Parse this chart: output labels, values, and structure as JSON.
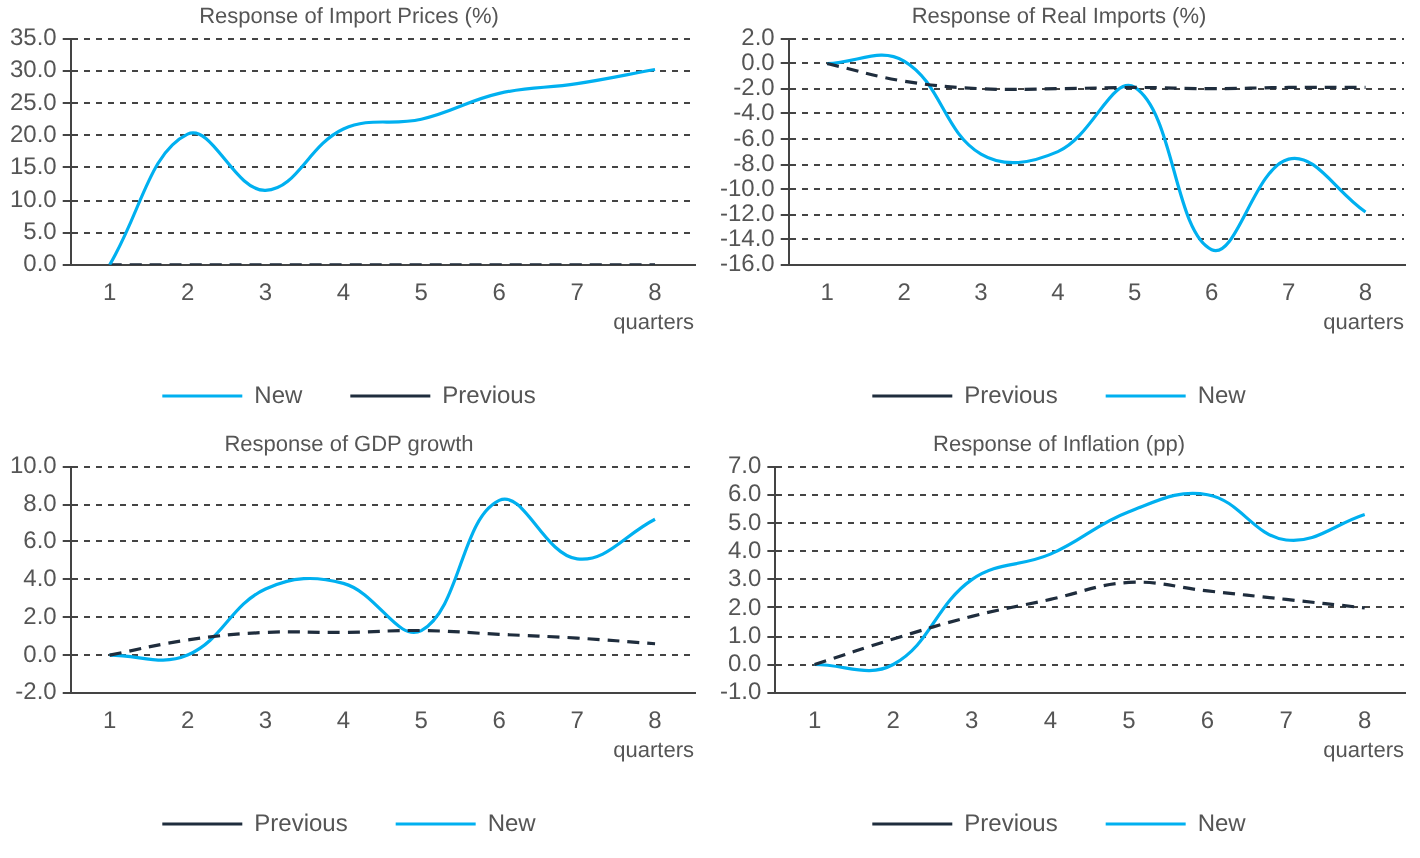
{
  "chart_data": [
    {
      "type": "line",
      "title": "Response of Import Prices (%)",
      "xlabel": "quarters",
      "categories": [
        "1",
        "2",
        "3",
        "4",
        "5",
        "6",
        "7",
        "8"
      ],
      "ylim": [
        0,
        35
      ],
      "yticks": [
        {
          "value": 0,
          "label": "0.0"
        },
        {
          "value": 5,
          "label": "5.0"
        },
        {
          "value": 10,
          "label": "10.0"
        },
        {
          "value": 15,
          "label": "15.0"
        },
        {
          "value": 20,
          "label": "20.0"
        },
        {
          "value": 25,
          "label": "25.0"
        },
        {
          "value": 30,
          "label": "30.0"
        },
        {
          "value": 35,
          "label": "35.0"
        }
      ],
      "grid": "y",
      "legend": "bottom",
      "marker": "none",
      "series": [
        {
          "name": "New",
          "color": "#00b0f0",
          "line_style": "solid",
          "values": [
            0,
            20.2,
            11.5,
            21,
            22.5,
            26.5,
            28,
            30.2
          ]
        },
        {
          "name": "Previous",
          "color": "#1f2d3d",
          "line_style": "dashed",
          "values": [
            0,
            0,
            0,
            0,
            0,
            0,
            0,
            0
          ]
        }
      ]
    },
    {
      "type": "line",
      "title": "Response of Real Imports (%)",
      "xlabel": "quarters",
      "categories": [
        "1",
        "2",
        "3",
        "4",
        "5",
        "6",
        "7",
        "8"
      ],
      "ylim": [
        -16,
        2
      ],
      "yticks": [
        {
          "value": -16,
          "label": "-16.0"
        },
        {
          "value": -14,
          "label": "-14.0"
        },
        {
          "value": -12,
          "label": "-12.0"
        },
        {
          "value": -10,
          "label": "-10.0"
        },
        {
          "value": -8,
          "label": "-8.0"
        },
        {
          "value": -6,
          "label": "-6.0"
        },
        {
          "value": -4,
          "label": "-4.0"
        },
        {
          "value": -2,
          "label": "-2.0"
        },
        {
          "value": 0,
          "label": "0.0"
        },
        {
          "value": 2,
          "label": "2.0"
        }
      ],
      "grid": "y",
      "legend": "bottom",
      "marker": "none",
      "series": [
        {
          "name": "Previous",
          "color": "#1f2d3d",
          "line_style": "dashed",
          "values": [
            0,
            -1.4,
            -2,
            -2,
            -1.9,
            -2,
            -1.9,
            -1.9
          ]
        },
        {
          "name": "New",
          "color": "#00b0f0",
          "line_style": "solid",
          "values": [
            0,
            0.2,
            -7.2,
            -7,
            -1.9,
            -14.8,
            -7.6,
            -11.8
          ]
        }
      ]
    },
    {
      "type": "line",
      "title": "Response of GDP growth",
      "xlabel": "quarters",
      "categories": [
        "1",
        "2",
        "3",
        "4",
        "5",
        "6",
        "7",
        "8"
      ],
      "ylim": [
        -2,
        10
      ],
      "yticks": [
        {
          "value": -2,
          "label": "-2.0"
        },
        {
          "value": 0,
          "label": "0.0"
        },
        {
          "value": 2,
          "label": "2.0"
        },
        {
          "value": 4,
          "label": "4.0"
        },
        {
          "value": 6,
          "label": "6.0"
        },
        {
          "value": 8,
          "label": "8.0"
        },
        {
          "value": 10,
          "label": "10.0"
        }
      ],
      "grid": "y",
      "legend": "bottom",
      "marker": "none",
      "series": [
        {
          "name": "Previous",
          "color": "#1f2d3d",
          "line_style": "dashed",
          "values": [
            0,
            0.8,
            1.2,
            1.2,
            1.3,
            1.1,
            0.9,
            0.6
          ]
        },
        {
          "name": "New",
          "color": "#00b0f0",
          "line_style": "solid",
          "values": [
            0,
            0,
            3.5,
            3.8,
            1.3,
            8.2,
            5.1,
            7.2
          ]
        }
      ]
    },
    {
      "type": "line",
      "title": "Response of Inflation (pp)",
      "xlabel": "quarters",
      "categories": [
        "1",
        "2",
        "3",
        "4",
        "5",
        "6",
        "7",
        "8"
      ],
      "ylim": [
        -1,
        7
      ],
      "yticks": [
        {
          "value": -1,
          "label": "-1.0"
        },
        {
          "value": 0,
          "label": "0.0"
        },
        {
          "value": 1,
          "label": "1.0"
        },
        {
          "value": 2,
          "label": "2.0"
        },
        {
          "value": 3,
          "label": "3.0"
        },
        {
          "value": 4,
          "label": "4.0"
        },
        {
          "value": 5,
          "label": "5.0"
        },
        {
          "value": 6,
          "label": "6.0"
        },
        {
          "value": 7,
          "label": "7.0"
        }
      ],
      "grid": "y",
      "legend": "bottom",
      "marker": "none",
      "series": [
        {
          "name": "Previous",
          "color": "#1f2d3d",
          "line_style": "dashed",
          "values": [
            0,
            0.9,
            1.7,
            2.3,
            2.9,
            2.6,
            2.3,
            2
          ]
        },
        {
          "name": "New",
          "color": "#00b0f0",
          "line_style": "solid",
          "values": [
            0,
            0,
            3,
            3.9,
            5.4,
            6,
            4.4,
            5.3
          ]
        }
      ]
    }
  ]
}
